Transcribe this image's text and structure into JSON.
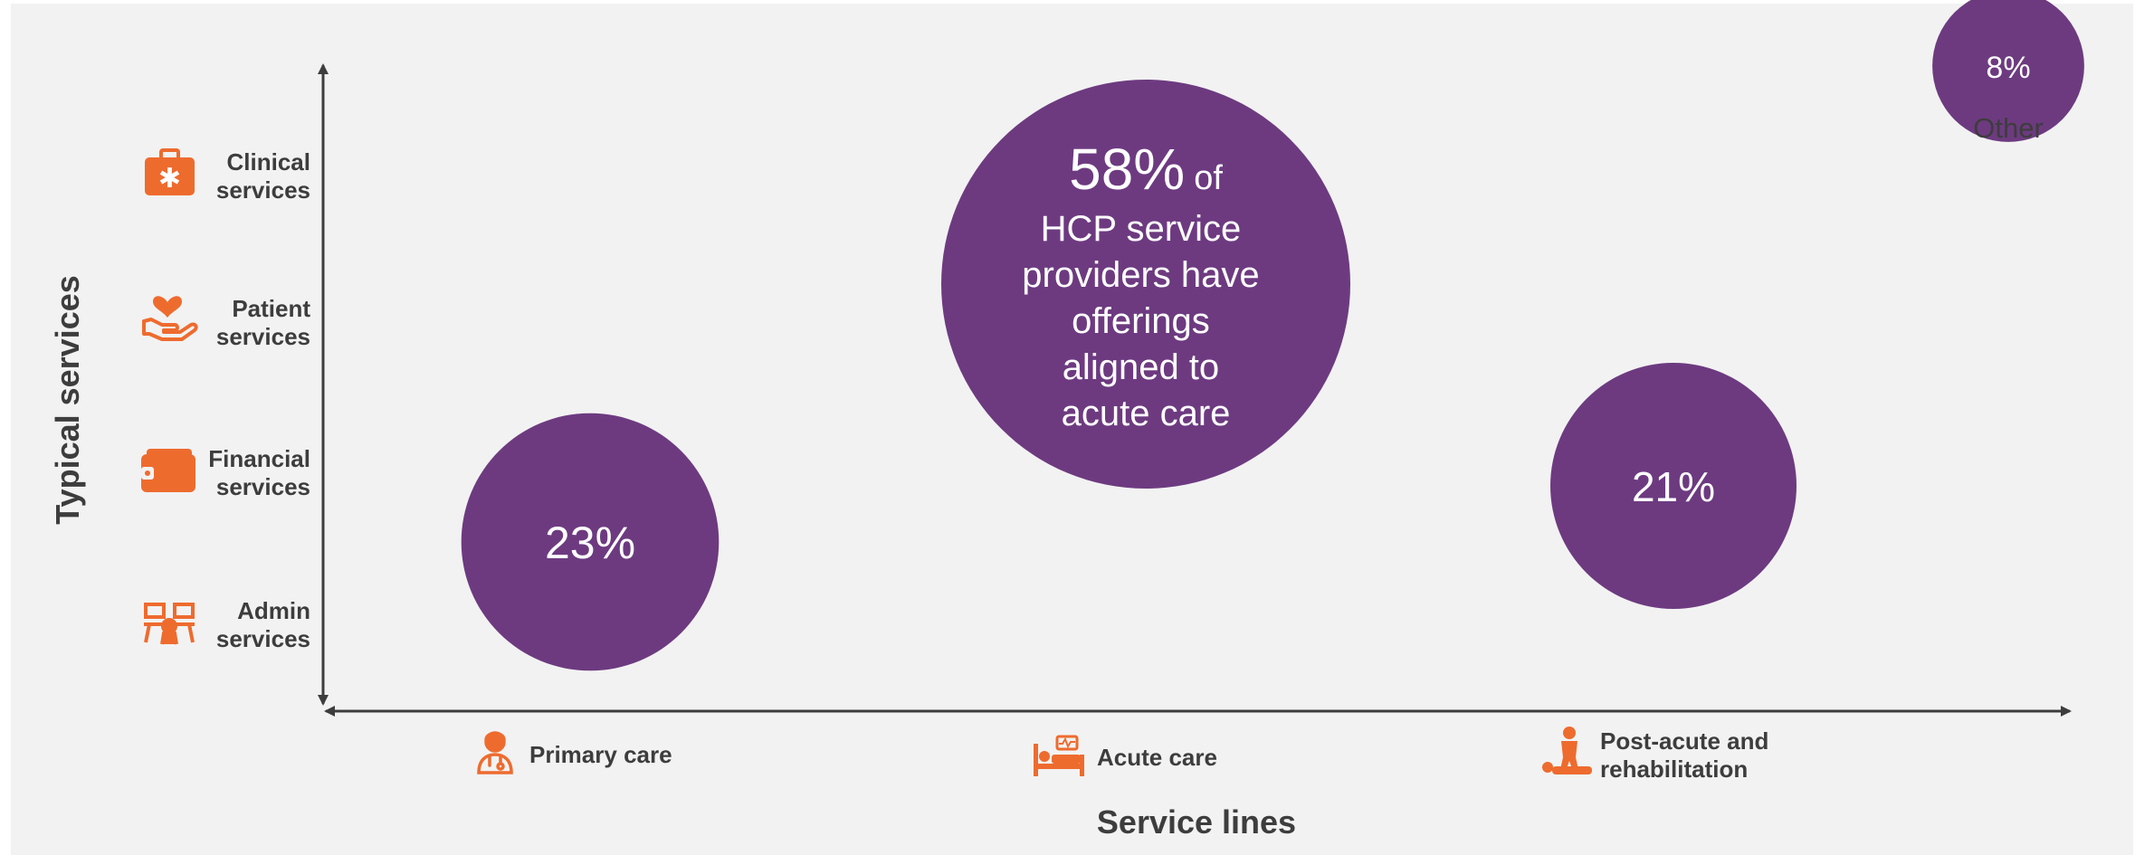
{
  "chart_data": {
    "type": "bubble",
    "xlabel": "Service lines",
    "ylabel": "Typical services",
    "x_categories": [
      {
        "id": "primary",
        "label_lines": [
          "Primary care"
        ],
        "icon": "doctor-icon"
      },
      {
        "id": "acute",
        "label_lines": [
          "Acute care"
        ],
        "icon": "hospital-bed-icon"
      },
      {
        "id": "post",
        "label_lines": [
          "Post-acute and",
          "rehabilitation"
        ],
        "icon": "cpr-icon"
      }
    ],
    "y_categories": [
      {
        "id": "clinical",
        "label_lines": [
          "Clinical",
          "services"
        ],
        "icon": "medical-kit-icon"
      },
      {
        "id": "patient",
        "label_lines": [
          "Patient",
          "services"
        ],
        "icon": "hand-heart-icon"
      },
      {
        "id": "financial",
        "label_lines": [
          "Financial",
          "services"
        ],
        "icon": "wallet-icon"
      },
      {
        "id": "admin",
        "label_lines": [
          "Admin",
          "services"
        ],
        "icon": "office-desks-icon"
      }
    ],
    "bubbles": [
      {
        "id": "primary",
        "x": "Primary care",
        "value": 23,
        "label": "23%"
      },
      {
        "id": "acute",
        "x": "Acute care",
        "value": 58,
        "label": "58%",
        "label_suffix": "of",
        "text_lines": [
          "HCP service",
          "providers have",
          "offerings",
          "aligned to",
          "acute care"
        ]
      },
      {
        "id": "post",
        "x": "Post-acute and rehabilitation",
        "value": 21,
        "label": "21%"
      },
      {
        "id": "other",
        "x": "Other",
        "value": 8,
        "label": "8%",
        "caption": "Other"
      }
    ]
  },
  "colors": {
    "background": "#f2f2f2",
    "bubble": "#6d3a80",
    "icon": "#ee6b2e",
    "axis": "#3d3d3d",
    "text": "#3d3d3d"
  }
}
